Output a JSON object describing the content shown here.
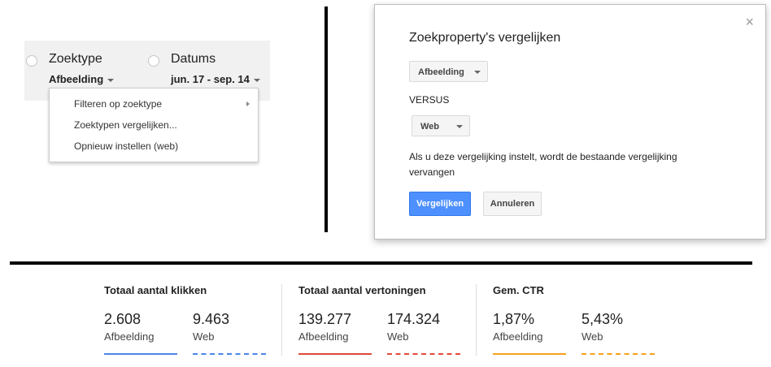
{
  "filter": {
    "search_type": {
      "title": "Zoektype",
      "value": "Afbeelding"
    },
    "dates": {
      "title": "Datums",
      "value": "jun. 17 - sep. 14"
    },
    "menu": [
      {
        "label": "Filteren op zoektype",
        "has_submenu": true
      },
      {
        "label": "Zoektypen vergelijken...",
        "has_submenu": false
      },
      {
        "label": "Opnieuw instellen (web)",
        "has_submenu": false
      }
    ]
  },
  "dialog": {
    "title": "Zoekproperty's vergelijken",
    "close": "×",
    "first_select": "Afbeelding",
    "versus": "VERSUS",
    "second_select": "Web",
    "warning": "Als u deze vergelijking instelt, wordt de bestaande vergelijking vervangen",
    "confirm_label": "Vergelijken",
    "cancel_label": "Annuleren"
  },
  "metrics": [
    {
      "title": "Totaal aantal klikken",
      "color": "#4a86e8",
      "series": [
        {
          "value": "2.608",
          "label": "Afbeelding"
        },
        {
          "value": "9.463",
          "label": "Web"
        }
      ]
    },
    {
      "title": "Totaal aantal vertoningen",
      "color": "#dd4b39",
      "series": [
        {
          "value": "139.277",
          "label": "Afbeelding"
        },
        {
          "value": "174.324",
          "label": "Web"
        }
      ]
    },
    {
      "title": "Gem. CTR",
      "color": "#f6a01a",
      "series": [
        {
          "value": "1,87%",
          "label": "Afbeelding"
        },
        {
          "value": "5,43%",
          "label": "Web"
        }
      ]
    }
  ]
}
